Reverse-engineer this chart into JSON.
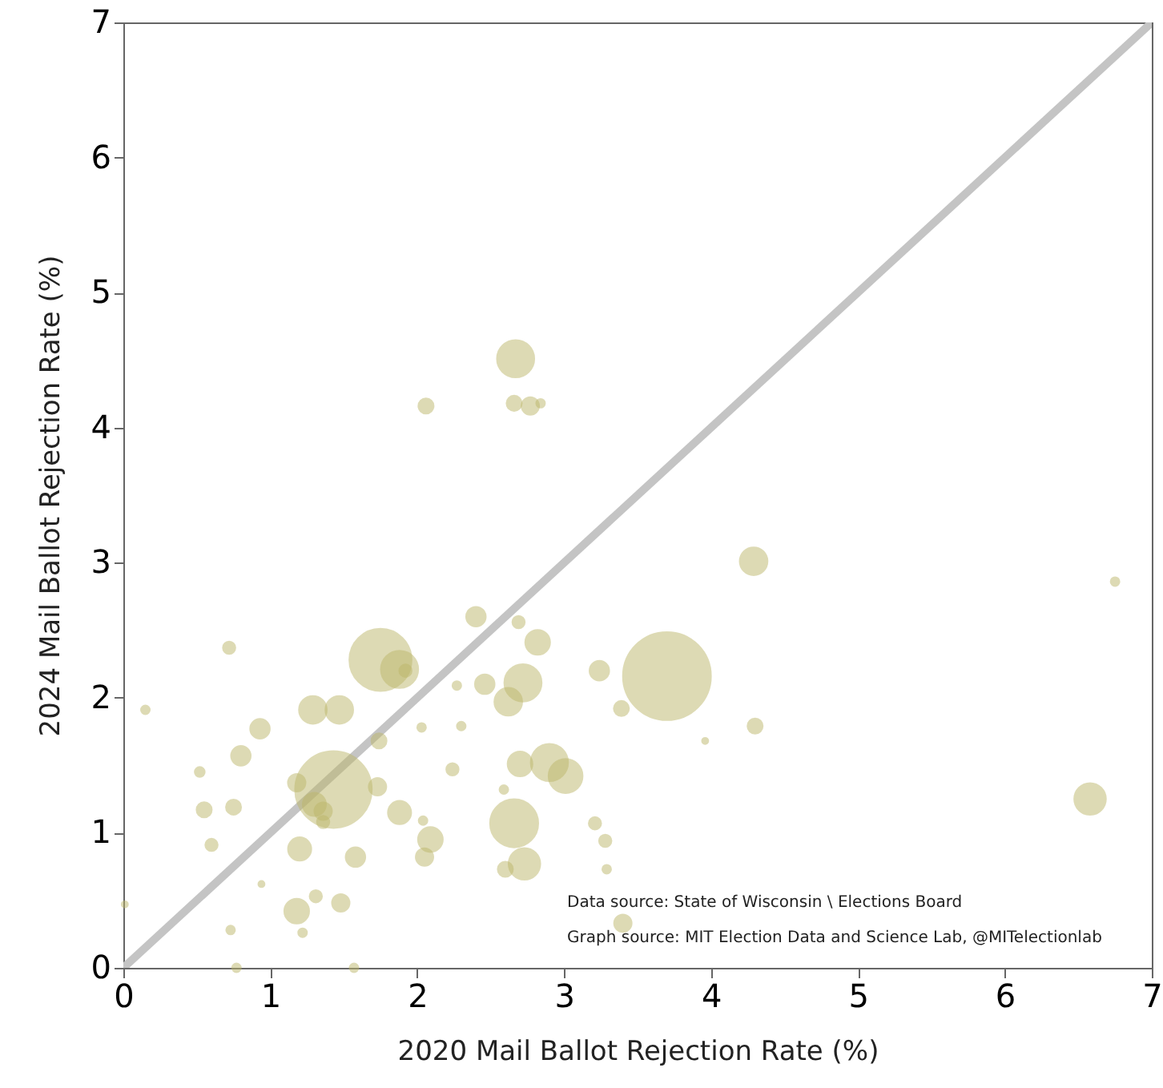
{
  "chart_data": {
    "type": "bubble",
    "xlabel": "2020 Mail Ballot Rejection Rate (%)",
    "ylabel": "2024 Mail Ballot Rejection Rate (%)",
    "xlim": [
      0,
      7
    ],
    "ylim": [
      0,
      7
    ],
    "xticks": [
      0,
      1,
      2,
      3,
      4,
      5,
      6,
      7
    ],
    "yticks": [
      0,
      1,
      2,
      3,
      4,
      5,
      6,
      7
    ],
    "grid": false,
    "annotations": [
      "Data source: State of Wisconsin \\ Elections Board",
      "Graph source: MIT Election Data and Science Lab, @MITelectionlab"
    ],
    "series": [
      {
        "type": "line",
        "color": "#c4c4c4",
        "x": [
          0,
          7
        ],
        "values": [
          0,
          7
        ]
      },
      {
        "color": "#bdb76b",
        "x": [
          1.75,
          1.88,
          1.92,
          1.43,
          3.7,
          2.67,
          2.06,
          2.66,
          2.77,
          2.84,
          4.29,
          6.75,
          6.58,
          0.15,
          0.72,
          0.93,
          0.8,
          0.52,
          0.55,
          0.75,
          0.6,
          1.29,
          1.47,
          1.18,
          1.3,
          1.36,
          1.2,
          1.58,
          1.73,
          1.74,
          1.88,
          2.03,
          2.3,
          2.27,
          2.24,
          2.04,
          2.09,
          2.05,
          0.94,
          1.18,
          1.31,
          1.48,
          1.22,
          0.73,
          0.01,
          0.77,
          1.57,
          2.4,
          2.46,
          1.36,
          2.69,
          2.82,
          3.24,
          3.39,
          3.96,
          4.3,
          2.72,
          2.62,
          2.7,
          2.9,
          3.01,
          2.59,
          2.66,
          2.73,
          2.6,
          3.21,
          3.28,
          3.29,
          3.4
        ],
        "values": [
          2.28,
          2.21,
          2.2,
          1.32,
          2.16,
          4.51,
          4.16,
          4.18,
          4.16,
          4.18,
          3.01,
          2.86,
          1.25,
          1.91,
          2.37,
          1.77,
          1.57,
          1.45,
          1.17,
          1.19,
          0.91,
          1.91,
          1.91,
          1.37,
          1.21,
          1.16,
          0.88,
          0.82,
          1.34,
          1.68,
          1.15,
          1.78,
          1.79,
          2.09,
          1.47,
          1.09,
          0.95,
          0.82,
          0.62,
          0.42,
          0.53,
          0.48,
          0.26,
          0.28,
          0.47,
          0.0,
          0.0,
          2.6,
          2.1,
          1.08,
          2.56,
          2.41,
          2.2,
          1.92,
          1.68,
          1.79,
          2.11,
          1.97,
          1.51,
          1.52,
          1.42,
          1.32,
          1.07,
          0.77,
          0.73,
          1.07,
          0.94,
          0.73,
          0.33
        ],
        "sizes": [
          0.5,
          0.18,
          0.02,
          0.76,
          1.0,
          0.18,
          0.03,
          0.03,
          0.04,
          0.01,
          0.1,
          0.01,
          0.13,
          0.01,
          0.02,
          0.05,
          0.05,
          0.013,
          0.03,
          0.03,
          0.02,
          0.1,
          0.1,
          0.04,
          0.07,
          0.04,
          0.07,
          0.05,
          0.04,
          0.03,
          0.07,
          0.01,
          0.01,
          0.01,
          0.02,
          0.01,
          0.08,
          0.04,
          0.005,
          0.08,
          0.02,
          0.04,
          0.01,
          0.01,
          0.005,
          0.01,
          0.01,
          0.05,
          0.05,
          0.02,
          0.02,
          0.08,
          0.05,
          0.03,
          0.005,
          0.03,
          0.18,
          0.1,
          0.08,
          0.18,
          0.15,
          0.01,
          0.3,
          0.13,
          0.03,
          0.02,
          0.02,
          0.01,
          0.04
        ]
      }
    ]
  }
}
